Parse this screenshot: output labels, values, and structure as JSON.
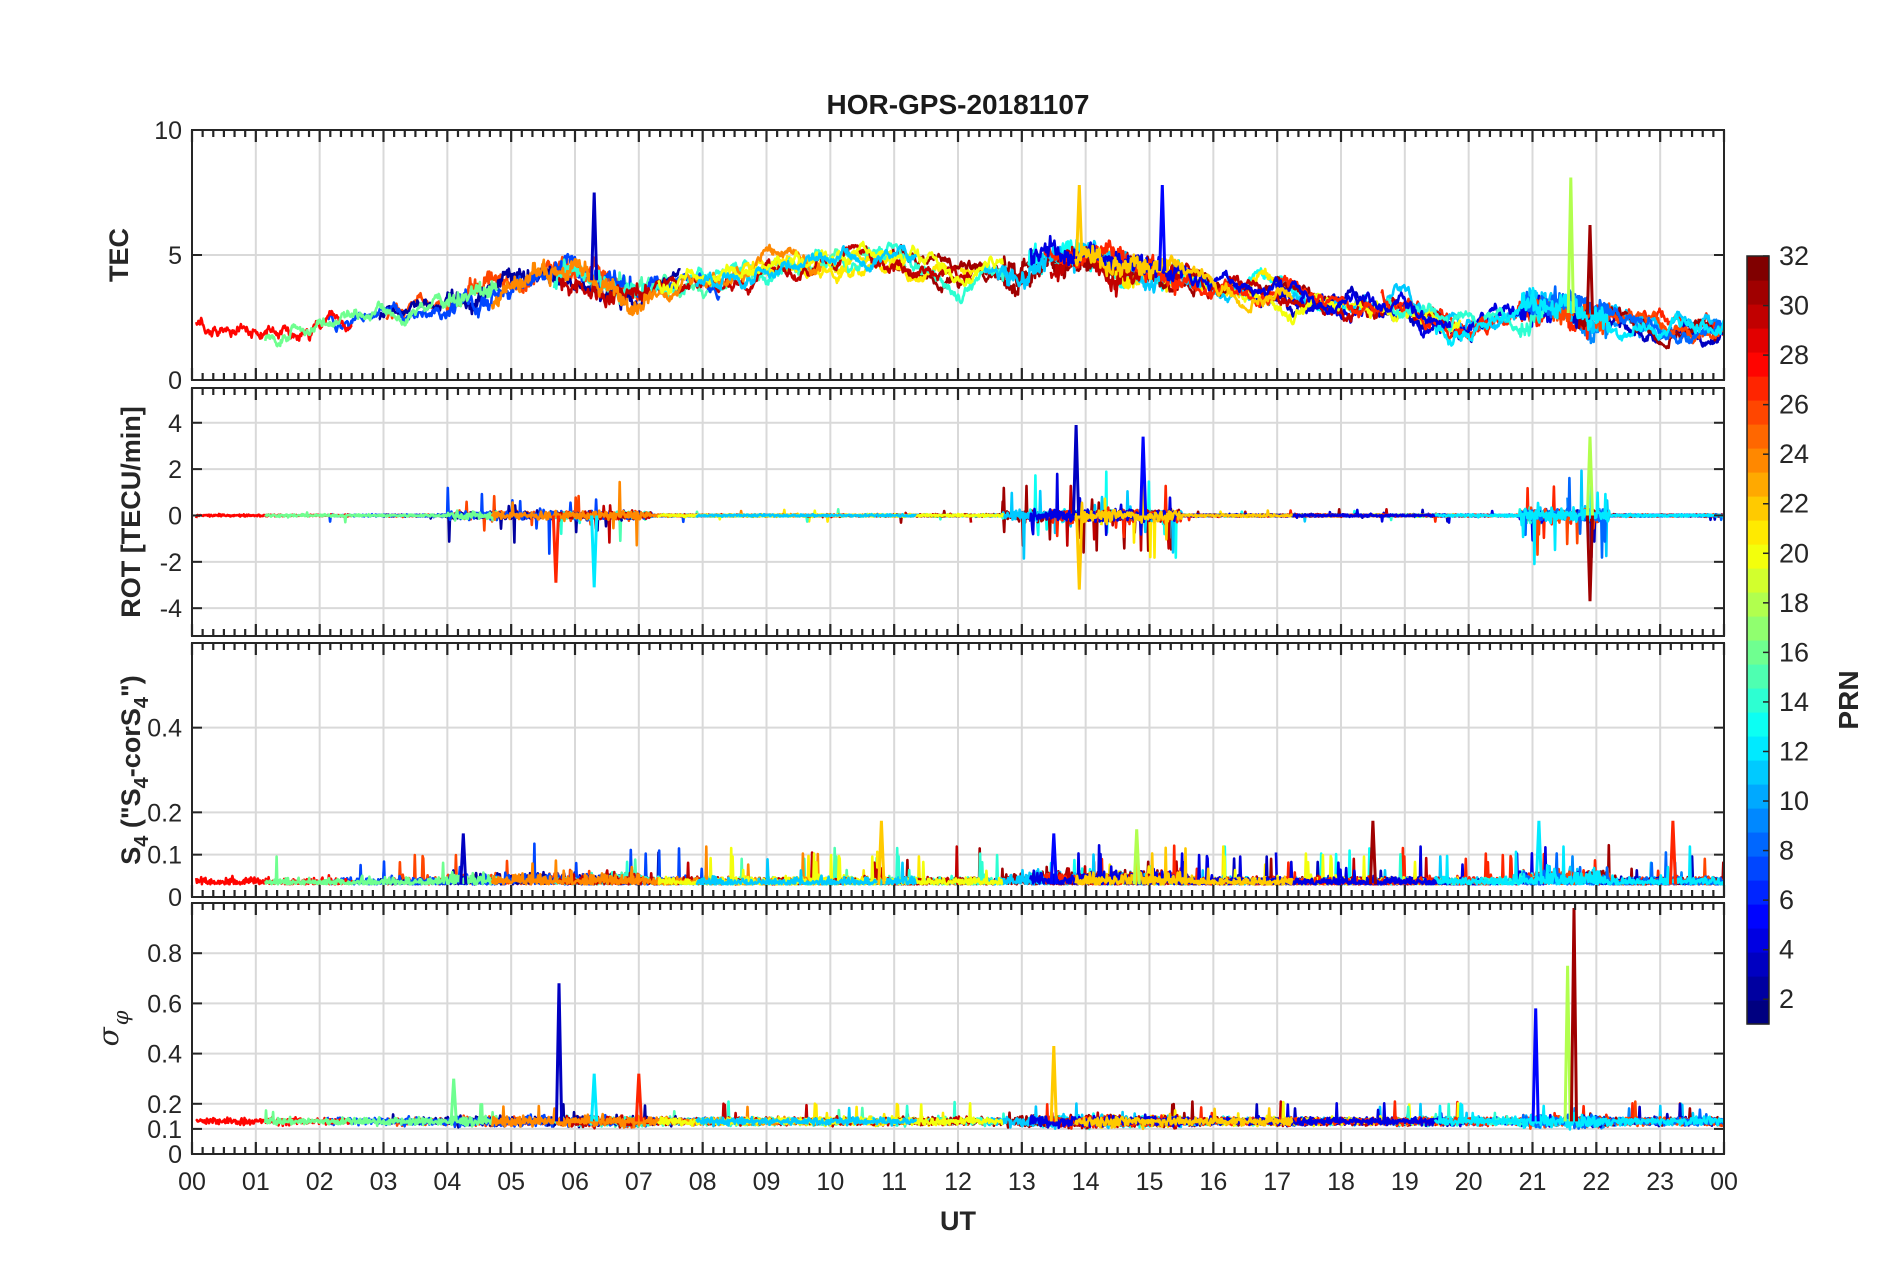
{
  "chart_data": {
    "type": "line",
    "title": "HOR-GPS-20181107",
    "xlabel": "UT",
    "x_ticks": [
      "00",
      "01",
      "02",
      "03",
      "04",
      "05",
      "06",
      "07",
      "08",
      "09",
      "10",
      "11",
      "12",
      "13",
      "14",
      "15",
      "16",
      "17",
      "18",
      "19",
      "20",
      "21",
      "22",
      "23",
      "00"
    ],
    "xlim": [
      0,
      24
    ],
    "grid": true,
    "panels": [
      {
        "id": "tec",
        "ylabel": "TEC",
        "ylim": [
          0,
          10
        ],
        "y_ticks": [
          0,
          5,
          10
        ],
        "y_tick_labels": [
          "0",
          "5",
          "10"
        ],
        "description_values": {
          "baseline_by_hour": [
            [
              0,
              2.0
            ],
            [
              2,
              2.3
            ],
            [
              4,
              3.0
            ],
            [
              5,
              4.0
            ],
            [
              6,
              4.2
            ],
            [
              7,
              3.5
            ],
            [
              8,
              4.0
            ],
            [
              9,
              4.5
            ],
            [
              10,
              4.8
            ],
            [
              11,
              5.0
            ],
            [
              12,
              4.2
            ],
            [
              13,
              4.5
            ],
            [
              14,
              5.0
            ],
            [
              15,
              4.5
            ],
            [
              16,
              3.8
            ],
            [
              17,
              3.5
            ],
            [
              18,
              3.0
            ],
            [
              19,
              2.7
            ],
            [
              20,
              2.2
            ],
            [
              21,
              2.8
            ],
            [
              22,
              2.6
            ],
            [
              23,
              2.2
            ],
            [
              24,
              2.2
            ]
          ],
          "peaks": [
            [
              6.3,
              7.5
            ],
            [
              13.9,
              7.8
            ],
            [
              15.2,
              7.8
            ],
            [
              21.6,
              8.1
            ],
            [
              21.9,
              6.2
            ]
          ]
        }
      },
      {
        "id": "rot",
        "ylabel": "ROT [TECU/min]",
        "ylim": [
          -5.2,
          5.5
        ],
        "y_ticks": [
          -4,
          -2,
          0,
          2,
          4
        ],
        "y_tick_labels": [
          "-4",
          "-2",
          "0",
          "2",
          "4"
        ],
        "description_values": {
          "peaks": [
            [
              13.85,
              3.9
            ],
            [
              13.9,
              -3.2
            ],
            [
              14.9,
              3.4
            ],
            [
              21.9,
              3.4
            ],
            [
              21.9,
              -3.7
            ],
            [
              6.3,
              -3.1
            ],
            [
              5.7,
              -2.9
            ]
          ]
        }
      },
      {
        "id": "s4",
        "ylabel": "S4 (\"S4-corS4\")",
        "ylabel_main": "S",
        "ylabel_sub1": "4",
        "ylabel_mid": " (\"S",
        "ylabel_sub2": "4",
        "ylabel_mid2": "-corS",
        "ylabel_sub3": "4",
        "ylabel_end": "\")",
        "ylim": [
          0,
          0.6
        ],
        "y_ticks": [
          0,
          0.1,
          0.2,
          0.4
        ],
        "y_tick_labels": [
          "0",
          "0.1",
          "0.2",
          "0.4"
        ],
        "description_values": {
          "peaks": [
            [
              4.25,
              0.15
            ],
            [
              10.8,
              0.18
            ],
            [
              13.5,
              0.15
            ],
            [
              14.8,
              0.16
            ],
            [
              18.5,
              0.18
            ],
            [
              21.1,
              0.18
            ],
            [
              23.2,
              0.18
            ]
          ]
        }
      },
      {
        "id": "sigma",
        "ylabel": "σ φ",
        "ylabel_main": "σ",
        "ylabel_sub": "φ",
        "ylim": [
          0,
          1.0
        ],
        "y_ticks": [
          0,
          0.1,
          0.2,
          0.4,
          0.6,
          0.8
        ],
        "y_tick_labels": [
          "0",
          "0.1",
          "0.2",
          "0.4",
          "0.6",
          "0.8"
        ],
        "description_values": {
          "baseline": 0.13,
          "peaks": [
            [
              5.75,
              0.68
            ],
            [
              13.5,
              0.43
            ],
            [
              21.05,
              0.58
            ],
            [
              21.55,
              0.75
            ],
            [
              21.65,
              0.98
            ],
            [
              6.3,
              0.32
            ],
            [
              7.0,
              0.32
            ],
            [
              4.1,
              0.3
            ]
          ]
        }
      }
    ],
    "colorbar": {
      "label": "PRN",
      "range": [
        1,
        32
      ],
      "ticks": [
        2,
        4,
        6,
        8,
        10,
        12,
        14,
        16,
        18,
        20,
        22,
        24,
        26,
        28,
        30,
        32
      ],
      "tick_labels": [
        "2",
        "4",
        "6",
        "8",
        "10",
        "12",
        "14",
        "16",
        "18",
        "20",
        "22",
        "24",
        "26",
        "28",
        "30",
        "32"
      ],
      "colormap": "jet"
    }
  }
}
